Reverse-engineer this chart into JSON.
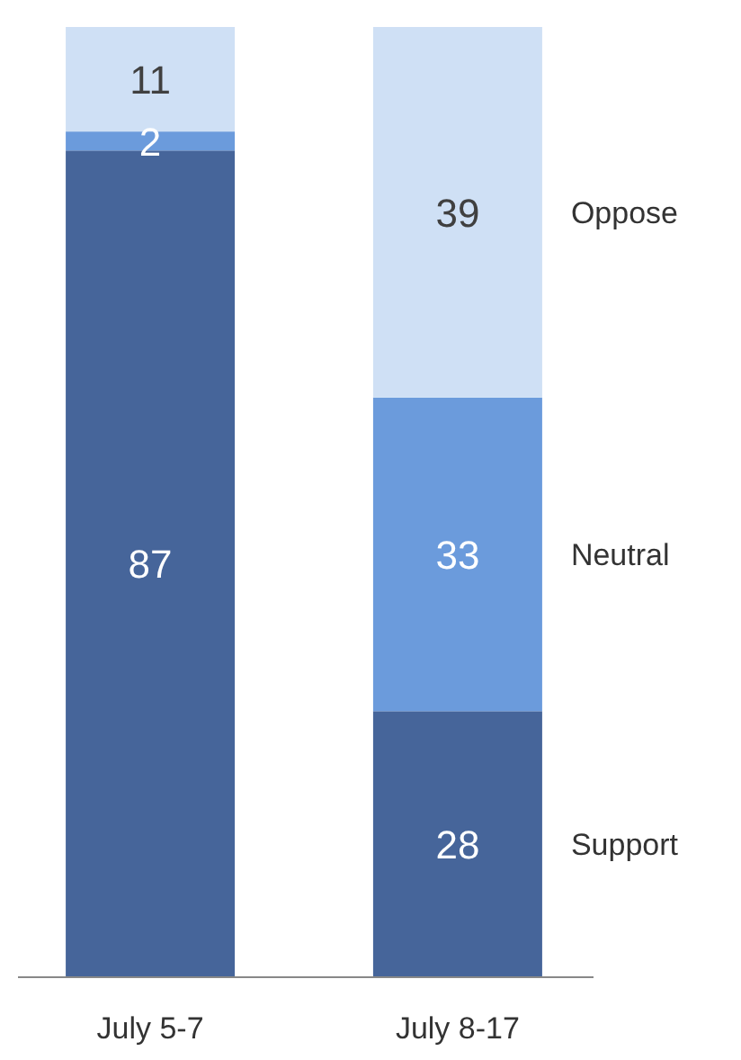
{
  "chart_data": {
    "type": "bar",
    "stacked": true,
    "categories": [
      "July 5-7",
      "July 8-17"
    ],
    "ylim": [
      0,
      100
    ],
    "tick_labels": "x",
    "data_labels": true,
    "legend": "right",
    "series": [
      {
        "name": "Support",
        "color": "#46659a",
        "values": [
          87,
          28
        ]
      },
      {
        "name": "Neutral",
        "color": "#6b9bdc",
        "values": [
          2,
          33
        ]
      },
      {
        "name": "Oppose",
        "color": "#cfe0f5",
        "values": [
          11,
          39
        ]
      }
    ]
  }
}
